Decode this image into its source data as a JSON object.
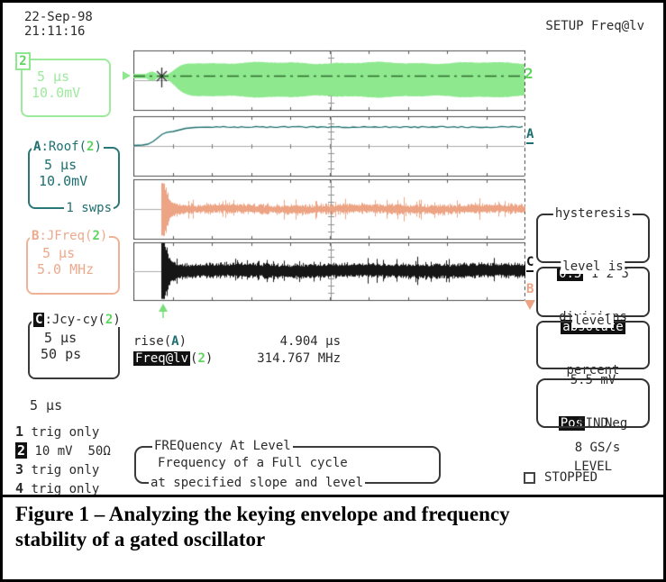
{
  "header": {
    "date": "22-Sep-98",
    "time": "21:11:16",
    "setup": "SETUP Freq@lv"
  },
  "trace_boxes": {
    "ch2": {
      "badge": "2",
      "line1": "5 µs",
      "line2": "10.0mV"
    },
    "a": {
      "letter": "A",
      "name": ":Roof(",
      "src": "2",
      "close": ")",
      "line1": "5 µs",
      "line2": "10.0mV",
      "footer": "1 swps"
    },
    "b": {
      "letter": "B",
      "name": ":JFreq(",
      "src": "2",
      "close": ")",
      "line1": "5 µs",
      "line2": "5.0 MHz"
    },
    "c": {
      "letter": "C",
      "name": ":Jcy-cy(",
      "src": "2",
      "close": ")",
      "line1": "5 µs",
      "line2": "50 ps"
    }
  },
  "timebase": "5 µs",
  "trigger_list": [
    {
      "num": "1",
      "label": "trig only"
    },
    {
      "num": "2",
      "label": "10 mV  50Ω"
    },
    {
      "num": "3",
      "label": "trig only"
    },
    {
      "num": "4",
      "label": "trig only"
    }
  ],
  "measurements": {
    "rise": {
      "prefix": "rise(",
      "src": "A",
      "suffix": ")",
      "value": "4.904 µs"
    },
    "freq": {
      "chip": "Freq@lv",
      "open": "(",
      "src": "2",
      "close": ")",
      "value": "314.767 MHz"
    }
  },
  "info_box": {
    "title": "FREQuency At Level",
    "body": "Frequency of a Full cycle",
    "footer": "at specified slope and level"
  },
  "menu": {
    "hysteresis": {
      "title": "hysteresis",
      "selected": "0.5",
      "rest": " 1 2 5",
      "line2": "divisions"
    },
    "level_is": {
      "title": "level is",
      "selected": "absolute",
      "other": "percent"
    },
    "level": {
      "title": "level",
      "value": "5.5 mV",
      "pos": "Pos",
      "neg": "Neg"
    },
    "find": {
      "line1": "FIND",
      "line2": "LEVEL"
    },
    "sample_rate": "8 GS/s",
    "status": "STOPPED"
  },
  "plot_labels": {
    "ch2": "2",
    "a": "A",
    "b": "B",
    "c": "C"
  },
  "caption": {
    "line1": "Figure 1 – Analyzing the keying envelope and frequency",
    "line2": "stability of a gated oscillator"
  },
  "colors": {
    "green": "#8ee88e",
    "green_dark": "#2d6a2d",
    "teal": "#1e6f6f",
    "salmon": "#eda484",
    "black": "#161616"
  },
  "chart_data": {
    "type": "line",
    "note": "oscilloscope screen with four stacked grids, 10 horizontal divisions, timebase 5 µs/div, sample rate 8 GS/s, trigger near first division",
    "panels": [
      {
        "label": "2",
        "signal": "gated oscillator keyed burst envelope",
        "scale": "10.0mV/div",
        "style": "envelope",
        "color": "#8ee88e",
        "centerline": "#2d6a2d"
      },
      {
        "label": "A",
        "signal": "Roof(2) envelope roof, rise time 4.904 µs",
        "scale": "10.0mV/div",
        "style": "line",
        "color": "#1e6f6f"
      },
      {
        "label": "B",
        "signal": "JFreq(2) frequency vs time, 5.0 MHz/div, settles at 314.767 MHz",
        "scale": "5.0 MHz/div",
        "style": "noise",
        "color": "#eda484",
        "base_amp": 4.5,
        "spike_amp": 29
      },
      {
        "label": "C",
        "signal": "Jcy-cy(2) cycle-to-cycle jitter, 50 ps/div",
        "scale": "50 ps/div",
        "style": "noise",
        "color": "#161616",
        "base_amp": 7,
        "spike_amp": 31
      }
    ]
  }
}
